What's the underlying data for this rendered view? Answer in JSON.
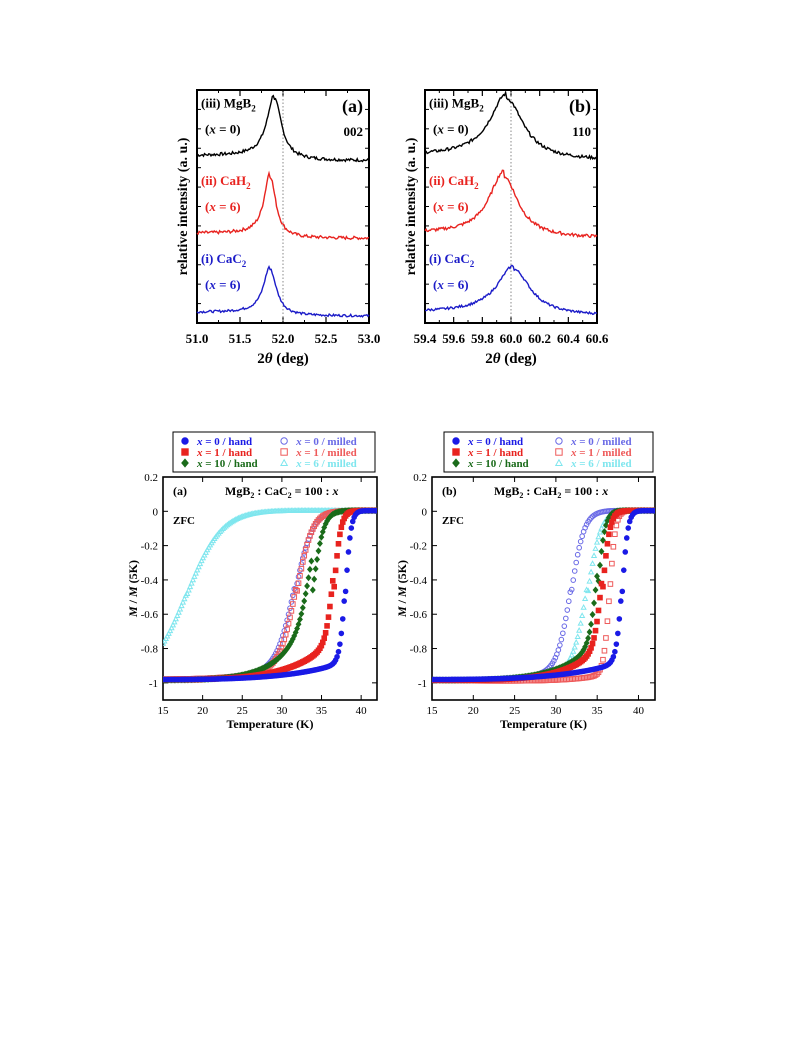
{
  "colors": {
    "black": "#000000",
    "red": "#e8231f",
    "blue": "#1c1cc8",
    "green": "#1a6b1a",
    "cyan": "#7fe6ee",
    "hand_blue": "#1a1ae6",
    "milled_blue": "#6a6ae6",
    "milled_red": "#ee5a5a",
    "milled_green": "#e8a0a0"
  },
  "chart_data": [
    {
      "id": "xrd-002",
      "type": "line",
      "panel_label": "(a)",
      "peak_label": "002",
      "xlabel": "2θ (deg)",
      "ylabel": "relative intensity (a. u.)",
      "xlim": [
        51.0,
        53.0
      ],
      "xticks": [
        "51.0",
        "51.5",
        "52.0",
        "52.5",
        "53.0"
      ],
      "reference_line_x": 52.0,
      "series": [
        {
          "name": "(iii) MgB2",
          "subname": "(x = 0)",
          "color": "#000000",
          "peak": 51.9,
          "width": 0.1,
          "height": 1.0,
          "base": 0.0,
          "offset": 2
        },
        {
          "name": "(ii) CaH2",
          "subname": "(x = 6)",
          "color": "#e8231f",
          "peak": 51.85,
          "width": 0.08,
          "height": 1.0,
          "base": 0.0,
          "offset": 1
        },
        {
          "name": "(i) CaC2",
          "subname": "(x = 6)",
          "color": "#1c1cc8",
          "peak": 51.85,
          "width": 0.09,
          "height": 0.75,
          "base": 0.0,
          "offset": 0
        }
      ]
    },
    {
      "id": "xrd-110",
      "type": "line",
      "panel_label": "(b)",
      "peak_label": "110",
      "xlabel": "2θ (deg)",
      "ylabel": "relative intensity (a. u.)",
      "xlim": [
        59.4,
        60.6
      ],
      "xticks": [
        "59.4",
        "59.6",
        "59.8",
        "60.0",
        "60.2",
        "60.4",
        "60.6"
      ],
      "reference_line_x": 60.0,
      "series": [
        {
          "name": "(iii) MgB2",
          "subname": "(x = 0)",
          "color": "#000000",
          "peak": 59.97,
          "width": 0.14,
          "height": 1.0,
          "base": 0.0,
          "offset": 2
        },
        {
          "name": "(ii) CaH2",
          "subname": "(x = 6)",
          "color": "#e8231f",
          "peak": 59.95,
          "width": 0.12,
          "height": 1.0,
          "base": 0.0,
          "offset": 1
        },
        {
          "name": "(i) CaC2",
          "subname": "(x = 6)",
          "color": "#1c1cc8",
          "peak": 60.02,
          "width": 0.14,
          "height": 0.75,
          "base": 0.0,
          "offset": 0
        }
      ]
    },
    {
      "id": "mag-cac2",
      "type": "scatter",
      "panel_label": "(a)",
      "composition_label": "MgB2 : CaC2 = 100 : x",
      "mode_label": "ZFC",
      "xlabel": "Temperature (K)",
      "ylabel": "M / M (5K)",
      "xlim": [
        15,
        42
      ],
      "ylim": [
        -1.1,
        0.2
      ],
      "xticks": [
        "15",
        "20",
        "25",
        "30",
        "35",
        "40"
      ],
      "yticks": [
        "0.2",
        "0",
        "-0.2",
        "-0.4",
        "-0.6",
        "-0.8",
        "-1"
      ],
      "legend": [
        {
          "label": "x = 0 / hand",
          "marker": "circle-filled",
          "color": "#1a1ae6"
        },
        {
          "label": "x = 0 / milled",
          "marker": "circle-open",
          "color": "#6a6ae6"
        },
        {
          "label": "x = 1 / hand",
          "marker": "square-filled",
          "color": "#e8231f"
        },
        {
          "label": "x = 1 / milled",
          "marker": "square-open",
          "color": "#ee5a5a"
        },
        {
          "label": "x = 10 / hand",
          "marker": "diamond-filled",
          "color": "#1a6b1a"
        },
        {
          "label": "x = 6 / milled",
          "marker": "triangle-open",
          "color": "#7fe6ee"
        }
      ],
      "series": [
        {
          "name": "x = 0 / hand",
          "tc": 38.0,
          "w": 0.35,
          "tail": 0.12,
          "tailw": 7.0
        },
        {
          "name": "x = 0 / milled",
          "tc": 31.6,
          "w": 1.1,
          "tail": 0.1,
          "tailw": 6.0
        },
        {
          "name": "x = 1 / hand",
          "tc": 36.5,
          "w": 0.45,
          "tail": 0.25,
          "tailw": 5.0
        },
        {
          "name": "x = 1 / milled",
          "tc": 31.8,
          "w": 1.0,
          "tail": 0.1,
          "tailw": 6.0
        },
        {
          "name": "x = 10 / hand",
          "tc": 33.8,
          "w": 0.7,
          "tail": 0.45,
          "tailw": 3.5
        },
        {
          "name": "x = 6 / milled",
          "tc": 18.0,
          "w": 2.2,
          "tail": 0.02,
          "tailw": 8.0
        }
      ]
    },
    {
      "id": "mag-cah2",
      "type": "scatter",
      "panel_label": "(b)",
      "composition_label": "MgB2 : CaH2 = 100 : x",
      "mode_label": "ZFC",
      "xlabel": "Temperature (K)",
      "ylabel": "M / M (5K)",
      "xlim": [
        15,
        42
      ],
      "ylim": [
        -1.1,
        0.2
      ],
      "xticks": [
        "15",
        "20",
        "25",
        "30",
        "35",
        "40"
      ],
      "yticks": [
        "0.2",
        "0",
        "-0.2",
        "-0.4",
        "-0.6",
        "-0.8",
        "-1"
      ],
      "legend": [
        {
          "label": "x = 0 / hand",
          "marker": "circle-filled",
          "color": "#1a1ae6"
        },
        {
          "label": "x = 0 / milled",
          "marker": "circle-open",
          "color": "#6a6ae6"
        },
        {
          "label": "x = 1 / hand",
          "marker": "square-filled",
          "color": "#e8231f"
        },
        {
          "label": "x = 1 / milled",
          "marker": "square-open",
          "color": "#ee5a5a"
        },
        {
          "label": "x = 10 / hand",
          "marker": "diamond-filled",
          "color": "#1a6b1a"
        },
        {
          "label": "x = 6 / milled",
          "marker": "triangle-open",
          "color": "#7fe6ee"
        }
      ],
      "series": [
        {
          "name": "x = 0 / hand",
          "tc": 38.0,
          "w": 0.35,
          "tail": 0.12,
          "tailw": 7.0
        },
        {
          "name": "x = 0 / milled",
          "tc": 31.8,
          "w": 0.8,
          "tail": 0.08,
          "tailw": 5.0
        },
        {
          "name": "x = 1 / hand",
          "tc": 35.6,
          "w": 0.45,
          "tail": 0.22,
          "tailw": 4.0
        },
        {
          "name": "x = 1 / milled",
          "tc": 36.5,
          "w": 0.35,
          "tail": 0.05,
          "tailw": 4.0
        },
        {
          "name": "x = 10 / hand",
          "tc": 35.0,
          "w": 0.45,
          "tail": 0.25,
          "tailw": 4.0
        },
        {
          "name": "x = 6 / milled",
          "tc": 33.8,
          "w": 0.8,
          "tail": 0.12,
          "tailw": 4.0
        }
      ]
    }
  ]
}
